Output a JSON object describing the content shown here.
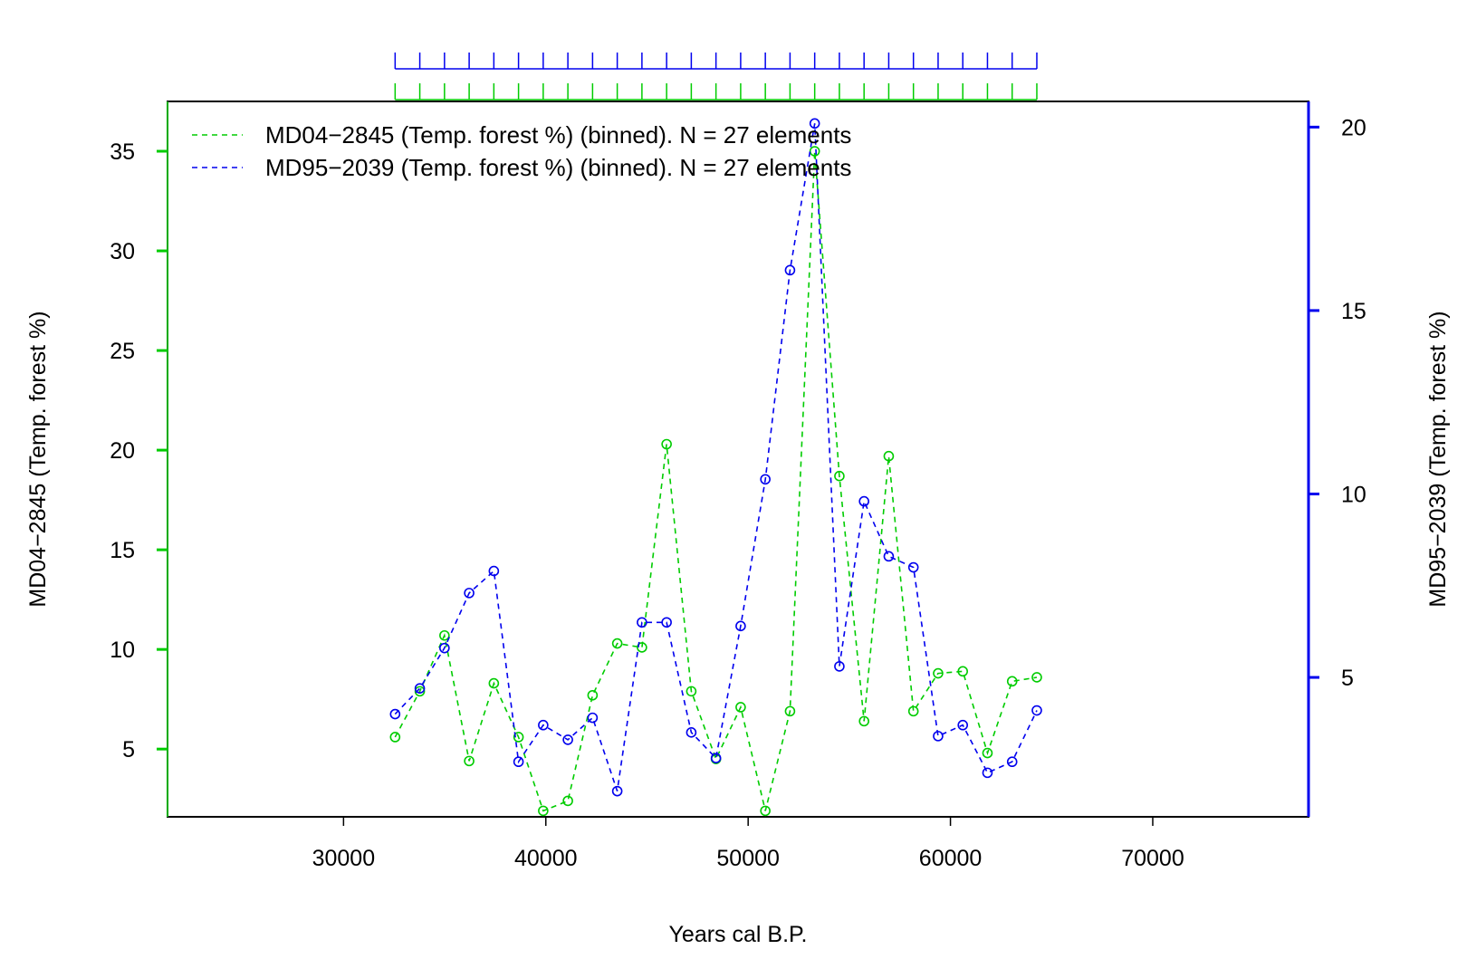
{
  "chart_data": {
    "type": "line",
    "xlabel": "Years cal B.P.",
    "ylabel_left": "MD04−2845 (Temp. forest %)",
    "ylabel_right": "MD95−2039 (Temp. forest %)",
    "xlim": [
      21300,
      77700
    ],
    "ylim_left": [
      1.6,
      37.5
    ],
    "ylim_right": [
      1.2,
      20.7
    ],
    "x_ticks": [
      30000,
      40000,
      50000,
      60000,
      70000
    ],
    "y_left_ticks": [
      5,
      10,
      15,
      20,
      25,
      30,
      35
    ],
    "y_right_ticks": [
      5,
      10,
      15,
      20
    ],
    "grid": false,
    "legend_position": "top-left",
    "top_rug_positions": [
      32550,
      33770,
      34990,
      36210,
      37430,
      38650,
      39870,
      41090,
      42310,
      43530,
      44750,
      45970,
      47190,
      48410,
      49630,
      50850,
      52070,
      53290,
      54510,
      55730,
      56950,
      58170,
      59390,
      60610,
      61830,
      63050,
      64270
    ],
    "series": [
      {
        "name": "MD04−2845 (Temp. forest %) (binned).  N = 27 elements",
        "axis": "left",
        "color": "#00cc00",
        "x": [
          32550,
          33770,
          34990,
          36210,
          37430,
          38650,
          39870,
          41090,
          42310,
          43530,
          44750,
          45970,
          47190,
          48410,
          49630,
          50850,
          52070,
          53290,
          54510,
          55730,
          56950,
          58170,
          59390,
          60610,
          61830,
          63050,
          64270
        ],
        "values": [
          5.6,
          7.9,
          10.7,
          4.4,
          8.3,
          5.6,
          1.9,
          2.4,
          7.7,
          10.3,
          10.1,
          20.3,
          7.9,
          4.5,
          7.1,
          1.9,
          6.9,
          35.0,
          18.7,
          6.4,
          19.7,
          6.9,
          8.8,
          8.9,
          4.8,
          8.4,
          8.6
        ]
      },
      {
        "name": "MD95−2039 (Temp. forest %) (binned).  N = 27 elements",
        "axis": "right",
        "color": "#0000ee",
        "x": [
          32550,
          33770,
          34990,
          36210,
          37430,
          38650,
          39870,
          41090,
          42310,
          43530,
          44750,
          45970,
          47190,
          48410,
          49630,
          50850,
          52070,
          53290,
          54510,
          55730,
          56950,
          58170,
          59390,
          60610,
          61830,
          63050,
          64270
        ],
        "values": [
          4.0,
          4.7,
          5.8,
          7.3,
          7.9,
          2.7,
          3.7,
          3.3,
          3.9,
          1.9,
          6.5,
          6.5,
          3.5,
          2.8,
          6.4,
          10.4,
          16.1,
          20.1,
          5.3,
          9.8,
          8.3,
          8.0,
          3.4,
          3.7,
          2.4,
          2.7,
          4.1
        ]
      }
    ]
  }
}
